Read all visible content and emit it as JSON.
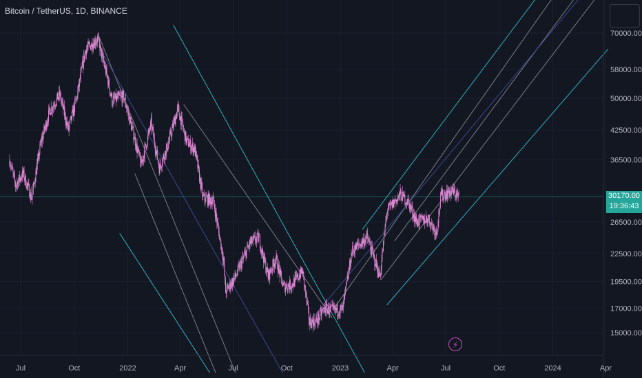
{
  "header": {
    "title": "Bitcoin / TetherUS, 1D, BINANCE"
  },
  "price_axis": {
    "current_price": "30170.00",
    "countdown": "19:36:43"
  },
  "icons": {
    "event_marker": "flash-icon",
    "top_button": "chart-settings-button"
  },
  "colors": {
    "background": "#131722",
    "candles": "#e08ad6",
    "channel_outer": "#2ec4cf",
    "channel_inner": "#d1d4dc",
    "median_line": "#3f4f9a",
    "price_tag": "#26a69a"
  },
  "chart_data": {
    "type": "candlestick",
    "title": "Bitcoin / TetherUS, 1D, BINANCE",
    "scale": "log",
    "y_ticks": [
      15000,
      17000,
      19500,
      22500,
      26500,
      30170,
      36500,
      42500,
      50000,
      58000,
      70000
    ],
    "y_tick_labels": [
      "15000.00",
      "17000.00",
      "19500.00",
      "22500.00",
      "26500.00",
      "30170.00",
      "36500.00",
      "42500.00",
      "50000.00",
      "58000.00",
      "70000.00"
    ],
    "x_tick_labels": [
      "Jul",
      "Oct",
      "2022",
      "Apr",
      "Jul",
      "Oct",
      "2023",
      "Apr",
      "Jul",
      "Oct",
      "2024",
      "Apr"
    ],
    "x_ticks": [
      "2021-07-01",
      "2021-10-01",
      "2022-01-01",
      "2022-04-01",
      "2022-07-01",
      "2022-10-01",
      "2023-01-01",
      "2023-04-01",
      "2023-07-01",
      "2023-10-01",
      "2024-01-01",
      "2024-04-01"
    ],
    "price_path": [
      {
        "date": "2021-06-12",
        "close": 36500
      },
      {
        "date": "2021-06-22",
        "close": 32000
      },
      {
        "date": "2021-07-05",
        "close": 34000
      },
      {
        "date": "2021-07-20",
        "close": 30000
      },
      {
        "date": "2021-08-05",
        "close": 40000
      },
      {
        "date": "2021-08-20",
        "close": 47000
      },
      {
        "date": "2021-09-06",
        "close": 51000
      },
      {
        "date": "2021-09-21",
        "close": 42500
      },
      {
        "date": "2021-10-05",
        "close": 50000
      },
      {
        "date": "2021-10-20",
        "close": 64000
      },
      {
        "date": "2021-11-10",
        "close": 68000
      },
      {
        "date": "2021-11-25",
        "close": 57000
      },
      {
        "date": "2021-12-05",
        "close": 49500
      },
      {
        "date": "2021-12-25",
        "close": 50500
      },
      {
        "date": "2022-01-10",
        "close": 42000
      },
      {
        "date": "2022-01-24",
        "close": 35500
      },
      {
        "date": "2022-02-10",
        "close": 44000
      },
      {
        "date": "2022-02-24",
        "close": 35000
      },
      {
        "date": "2022-03-10",
        "close": 39000
      },
      {
        "date": "2022-03-28",
        "close": 47500
      },
      {
        "date": "2022-04-12",
        "close": 40000
      },
      {
        "date": "2022-04-26",
        "close": 38500
      },
      {
        "date": "2022-05-10",
        "close": 30000
      },
      {
        "date": "2022-05-28",
        "close": 29500
      },
      {
        "date": "2022-06-14",
        "close": 22000
      },
      {
        "date": "2022-06-18",
        "close": 18500
      },
      {
        "date": "2022-07-05",
        "close": 20000
      },
      {
        "date": "2022-07-30",
        "close": 23800
      },
      {
        "date": "2022-08-14",
        "close": 24400
      },
      {
        "date": "2022-08-30",
        "close": 20000
      },
      {
        "date": "2022-09-12",
        "close": 22000
      },
      {
        "date": "2022-09-25",
        "close": 19000
      },
      {
        "date": "2022-10-10",
        "close": 19200
      },
      {
        "date": "2022-10-28",
        "close": 20600
      },
      {
        "date": "2022-11-09",
        "close": 15800
      },
      {
        "date": "2022-11-21",
        "close": 15900
      },
      {
        "date": "2022-12-05",
        "close": 17000
      },
      {
        "date": "2022-12-20",
        "close": 16800
      },
      {
        "date": "2023-01-05",
        "close": 16900
      },
      {
        "date": "2023-01-21",
        "close": 22800
      },
      {
        "date": "2023-02-16",
        "close": 24500
      },
      {
        "date": "2023-03-10",
        "close": 20000
      },
      {
        "date": "2023-03-22",
        "close": 28000
      },
      {
        "date": "2023-04-14",
        "close": 30500
      },
      {
        "date": "2023-04-28",
        "close": 29300
      },
      {
        "date": "2023-05-12",
        "close": 26500
      },
      {
        "date": "2023-06-01",
        "close": 27000
      },
      {
        "date": "2023-06-15",
        "close": 25000
      },
      {
        "date": "2023-06-23",
        "close": 30400
      },
      {
        "date": "2023-07-13",
        "close": 31000
      },
      {
        "date": "2023-07-24",
        "close": 30170
      }
    ],
    "channels": [
      {
        "name": "downtrend-pitchfork",
        "anchor": {
          "date": "2021-11-10",
          "price": 69000
        },
        "lines": [
          {
            "role": "outer",
            "from": {
              "date": "2022-03-20",
              "price": 73000
            },
            "to": {
              "date": "2023-02-12",
              "price": 12200
            }
          },
          {
            "role": "inner",
            "from": {
              "date": "2021-11-14",
              "price": 68000
            },
            "to": {
              "date": "2022-07-05",
              "price": 12200
            }
          },
          {
            "role": "inner",
            "from": {
              "date": "2022-01-13",
              "price": 34000
            },
            "to": {
              "date": "2022-06-01",
              "price": 12200
            }
          },
          {
            "role": "inner",
            "from": {
              "date": "2022-04-07",
              "price": 48500
            },
            "to": {
              "date": "2022-12-18",
              "price": 16200
            }
          },
          {
            "role": "median",
            "from": {
              "date": "2021-11-19",
              "price": 63000
            },
            "to": {
              "date": "2022-09-24",
              "price": 12200
            }
          },
          {
            "role": "outer",
            "from": {
              "date": "2021-12-18",
              "price": 25000
            },
            "to": {
              "date": "2022-05-22",
              "price": 12200
            }
          }
        ]
      },
      {
        "name": "uptrend-pitchfork",
        "anchor": {
          "date": "2022-11-15",
          "price": 16200
        },
        "lines": [
          {
            "role": "outer",
            "from": {
              "date": "2023-02-08",
              "price": 25500
            },
            "to": {
              "date": "2024-01-04",
              "price": 95000
            }
          },
          {
            "role": "inner",
            "from": {
              "date": "2022-12-20",
              "price": 16900
            },
            "to": {
              "date": "2024-01-30",
              "price": 95000
            }
          },
          {
            "role": "inner",
            "from": {
              "date": "2023-03-12",
              "price": 19700
            },
            "to": {
              "date": "2024-04-02",
              "price": 90000
            }
          },
          {
            "role": "inner",
            "from": {
              "date": "2023-04-04",
              "price": 24000
            },
            "to": {
              "date": "2024-03-10",
              "price": 95000
            }
          },
          {
            "role": "median",
            "from": {
              "date": "2022-11-15",
              "price": 16200
            },
            "to": {
              "date": "2024-03-22",
              "price": 95000
            }
          },
          {
            "role": "outer",
            "from": {
              "date": "2023-03-22",
              "price": 17300
            },
            "to": {
              "date": "2024-04-05",
              "price": 64500
            }
          }
        ]
      }
    ],
    "current_price": 30170
  }
}
